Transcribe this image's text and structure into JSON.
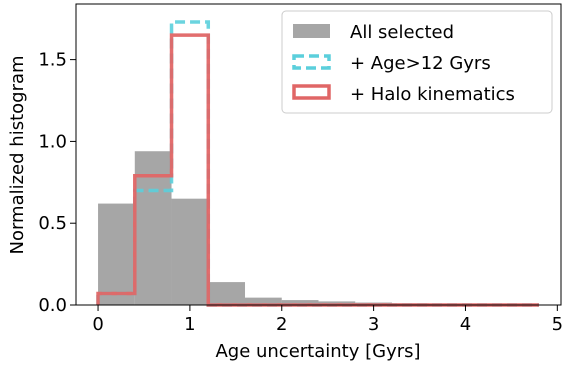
{
  "chart_data": {
    "type": "histogram",
    "title": "",
    "xlabel": "Age uncertainty [Gyrs]",
    "ylabel": "Normalized histogram",
    "xlim": [
      -0.24,
      5.04
    ],
    "ylim": [
      0,
      1.84
    ],
    "xticks": [
      0,
      1,
      2,
      3,
      4,
      5
    ],
    "yticks": [
      0.0,
      0.5,
      1.0,
      1.5
    ],
    "ytick_labels": [
      "0.0",
      "0.5",
      "1.0",
      "1.5"
    ],
    "grid": false,
    "legend_position": "top-right",
    "bin_edges": [
      0.0,
      0.4,
      0.8,
      1.2,
      1.6,
      2.0,
      2.4,
      2.8,
      3.2,
      3.6,
      4.0,
      4.4,
      4.8
    ],
    "series": [
      {
        "name": "All selected",
        "style": "filled-bar",
        "color": "#808080",
        "values": [
          0.62,
          0.94,
          0.65,
          0.14,
          0.045,
          0.03,
          0.022,
          0.015,
          0.01,
          0.006,
          0.004,
          0.003
        ]
      },
      {
        "name": "+ Age>12 Gyrs",
        "style": "dashed-step",
        "color": "#5bcfdc",
        "values": [
          0.07,
          0.7,
          1.73,
          0.0,
          0.0,
          0.0,
          0.0,
          0.0,
          0.0,
          0.0,
          0.0,
          0.0
        ]
      },
      {
        "name": "+ Halo kinematics",
        "style": "solid-step",
        "color": "#e06666",
        "values": [
          0.07,
          0.79,
          1.65,
          0.0,
          0.0,
          0.0,
          0.0,
          0.0,
          0.0,
          0.0,
          0.0,
          0.0
        ]
      }
    ]
  }
}
